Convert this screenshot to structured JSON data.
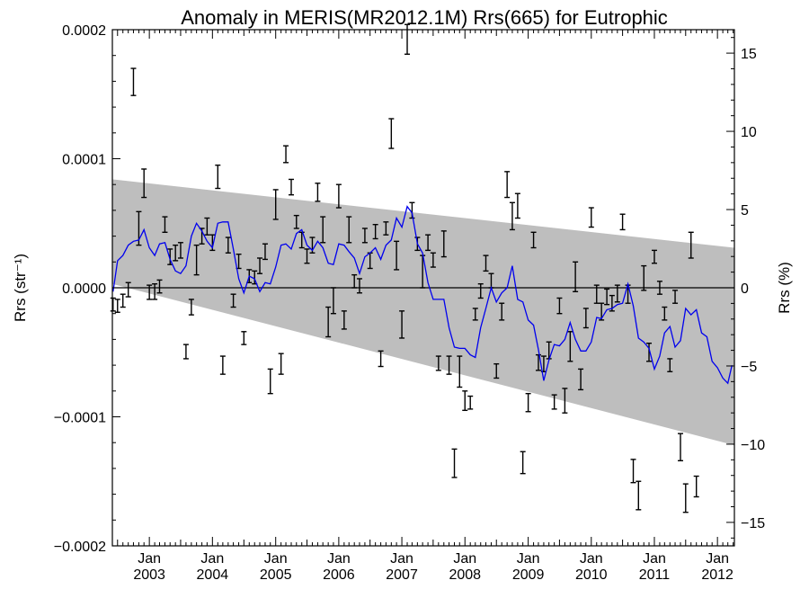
{
  "chart_data": {
    "type": "line",
    "title": "Anomaly in MERIS(MR2012.1M) Rrs(665) for Eutrophic",
    "ylabel_left": "Rrs (str⁻¹)",
    "ylabel_right": "Rrs (%)",
    "x_start": "2002-06-01",
    "x_end": "2012-04-08",
    "ylim_left": [
      -0.0002,
      0.0002
    ],
    "ylim_right": [
      -16.5,
      16.5
    ],
    "y_ticks_left": [
      {
        "value": 0.0002,
        "label": "0.0002"
      },
      {
        "value": 0.0001,
        "label": "0.0001"
      },
      {
        "value": 0.0,
        "label": "0.0000"
      },
      {
        "value": -0.0001,
        "label": "−0.0001"
      },
      {
        "value": -0.0002,
        "label": "−0.0002"
      }
    ],
    "y_ticks_right": [
      {
        "value": 15,
        "label": "15"
      },
      {
        "value": 10,
        "label": "10"
      },
      {
        "value": 5,
        "label": "5"
      },
      {
        "value": 0,
        "label": "0"
      },
      {
        "value": -5,
        "label": "−5"
      },
      {
        "value": -10,
        "label": "−10"
      },
      {
        "value": -15,
        "label": "−15"
      }
    ],
    "x_ticks": [
      {
        "date": "2003-01-01",
        "month": "Jan",
        "year": "2003"
      },
      {
        "date": "2004-01-01",
        "month": "Jan",
        "year": "2004"
      },
      {
        "date": "2005-01-01",
        "month": "Jan",
        "year": "2005"
      },
      {
        "date": "2006-01-01",
        "month": "Jan",
        "year": "2006"
      },
      {
        "date": "2007-01-01",
        "month": "Jan",
        "year": "2007"
      },
      {
        "date": "2008-01-01",
        "month": "Jan",
        "year": "2008"
      },
      {
        "date": "2009-01-01",
        "month": "Jan",
        "year": "2009"
      },
      {
        "date": "2010-01-01",
        "month": "Jan",
        "year": "2010"
      },
      {
        "date": "2011-01-01",
        "month": "Jan",
        "year": "2011"
      },
      {
        "date": "2012-01-01",
        "month": "Jan",
        "year": "2012"
      }
    ],
    "zero_line": true,
    "trend_band": {
      "start_date": "2002-06-01",
      "end_date": "2012-04-08",
      "upper": [
        8.4e-05,
        3.1e-05
      ],
      "lower": [
        3e-06,
        -0.000122
      ],
      "color": "#bebebe"
    },
    "series_line": {
      "color": "#0000ee",
      "points": [
        [
          "2002-06-05",
          -3e-06
        ],
        [
          "2002-07-01",
          2.1e-05
        ],
        [
          "2002-08-01",
          2.5e-05
        ],
        [
          "2002-09-01",
          3.3e-05
        ],
        [
          "2002-10-01",
          3.6e-05
        ],
        [
          "2002-11-01",
          3.7e-05
        ],
        [
          "2002-12-01",
          4.5e-05
        ],
        [
          "2003-01-01",
          3.1e-05
        ],
        [
          "2003-02-01",
          2.5e-05
        ],
        [
          "2003-03-01",
          3.4e-05
        ],
        [
          "2003-04-01",
          3.5e-05
        ],
        [
          "2003-05-01",
          2.2e-05
        ],
        [
          "2003-06-01",
          1.3e-05
        ],
        [
          "2003-07-01",
          1.1e-05
        ],
        [
          "2003-08-01",
          1.7e-05
        ],
        [
          "2003-09-01",
          4e-05
        ],
        [
          "2003-10-01",
          5e-05
        ],
        [
          "2003-11-01",
          4.4e-05
        ],
        [
          "2003-12-01",
          3.6e-05
        ],
        [
          "2004-01-01",
          3.1e-05
        ],
        [
          "2004-02-01",
          5e-05
        ],
        [
          "2004-03-01",
          5.1e-05
        ],
        [
          "2004-04-01",
          5.1e-05
        ],
        [
          "2004-05-01",
          3e-05
        ],
        [
          "2004-06-01",
          7e-06
        ],
        [
          "2004-07-01",
          -4e-06
        ],
        [
          "2004-08-01",
          9e-06
        ],
        [
          "2004-09-01",
          7e-06
        ],
        [
          "2004-10-01",
          -3e-06
        ],
        [
          "2004-11-01",
          4e-06
        ],
        [
          "2004-12-01",
          3e-06
        ],
        [
          "2005-01-01",
          1.6e-05
        ],
        [
          "2005-02-01",
          3.3e-05
        ],
        [
          "2005-03-01",
          3.4e-05
        ],
        [
          "2005-04-01",
          3e-05
        ],
        [
          "2005-05-01",
          4.2e-05
        ],
        [
          "2005-06-01",
          4.5e-05
        ],
        [
          "2005-07-01",
          3.3e-05
        ],
        [
          "2005-08-01",
          2.9e-05
        ],
        [
          "2005-09-01",
          3.6e-05
        ],
        [
          "2005-10-01",
          3.1e-05
        ],
        [
          "2005-11-01",
          1.9e-05
        ],
        [
          "2005-12-01",
          1.8e-05
        ],
        [
          "2006-01-01",
          3.4e-05
        ],
        [
          "2006-02-01",
          3.3e-05
        ],
        [
          "2006-03-01",
          2.8e-05
        ],
        [
          "2006-04-01",
          2.3e-05
        ],
        [
          "2006-05-01",
          1.1e-05
        ],
        [
          "2006-06-01",
          2.4e-05
        ],
        [
          "2006-07-01",
          2.7e-05
        ],
        [
          "2006-08-01",
          3.1e-05
        ],
        [
          "2006-09-01",
          2.2e-05
        ],
        [
          "2006-10-01",
          3.3e-05
        ],
        [
          "2006-11-01",
          3.7e-05
        ],
        [
          "2006-12-01",
          5.4e-05
        ],
        [
          "2007-01-01",
          4.7e-05
        ],
        [
          "2007-02-01",
          6.3e-05
        ],
        [
          "2007-03-01",
          5.8e-05
        ],
        [
          "2007-04-01",
          3.4e-05
        ],
        [
          "2007-05-01",
          2.7e-05
        ],
        [
          "2007-06-01",
          4e-06
        ],
        [
          "2007-07-01",
          -9e-06
        ],
        [
          "2007-08-01",
          -9e-06
        ],
        [
          "2007-09-01",
          -9e-06
        ],
        [
          "2007-10-01",
          -3.1e-05
        ],
        [
          "2007-11-01",
          -4.6e-05
        ],
        [
          "2007-12-01",
          -4.7e-05
        ],
        [
          "2008-01-01",
          -4.7e-05
        ],
        [
          "2008-02-01",
          -5.2e-05
        ],
        [
          "2008-03-01",
          -5.4e-05
        ],
        [
          "2008-04-01",
          -3.1e-05
        ],
        [
          "2008-05-01",
          -1.6e-05
        ],
        [
          "2008-06-01",
          0.0
        ],
        [
          "2008-07-01",
          -1.1e-05
        ],
        [
          "2008-08-01",
          -4e-06
        ],
        [
          "2008-09-01",
          0.0
        ],
        [
          "2008-10-01",
          1.7e-05
        ],
        [
          "2008-11-01",
          -9e-06
        ],
        [
          "2008-12-01",
          -1.1e-05
        ],
        [
          "2009-01-01",
          -2.5e-05
        ],
        [
          "2009-02-01",
          -2.9e-05
        ],
        [
          "2009-03-01",
          -4.8e-05
        ],
        [
          "2009-04-01",
          -7.2e-05
        ],
        [
          "2009-05-01",
          -5.6e-05
        ],
        [
          "2009-06-01",
          -4.4e-05
        ],
        [
          "2009-07-01",
          -4.5e-05
        ],
        [
          "2009-08-01",
          -4e-05
        ],
        [
          "2009-09-01",
          -2.7e-05
        ],
        [
          "2009-10-01",
          -4e-05
        ],
        [
          "2009-11-01",
          -4.9e-05
        ],
        [
          "2009-12-01",
          -4.9e-05
        ],
        [
          "2010-01-01",
          -4.2e-05
        ],
        [
          "2010-02-01",
          -2.3e-05
        ],
        [
          "2010-03-01",
          -2.4e-05
        ],
        [
          "2010-04-01",
          -1.7e-05
        ],
        [
          "2010-05-01",
          -1.6e-05
        ],
        [
          "2010-06-01",
          -1.3e-05
        ],
        [
          "2010-07-01",
          -1.2e-05
        ],
        [
          "2010-08-01",
          3e-06
        ],
        [
          "2010-09-01",
          -1.4e-05
        ],
        [
          "2010-10-01",
          -3.9e-05
        ],
        [
          "2010-11-01",
          -4.2e-05
        ],
        [
          "2010-12-01",
          -4.7e-05
        ],
        [
          "2011-01-01",
          -6.3e-05
        ],
        [
          "2011-02-01",
          -5.3e-05
        ],
        [
          "2011-03-01",
          -3.5e-05
        ],
        [
          "2011-04-01",
          -3e-05
        ],
        [
          "2011-05-01",
          -4.6e-05
        ],
        [
          "2011-06-01",
          -4.1e-05
        ],
        [
          "2011-07-01",
          -1.6e-05
        ],
        [
          "2011-08-01",
          -2.1e-05
        ],
        [
          "2011-09-01",
          -1.7e-05
        ],
        [
          "2011-10-01",
          -3.5e-05
        ],
        [
          "2011-11-01",
          -3.8e-05
        ],
        [
          "2011-12-01",
          -5.7e-05
        ],
        [
          "2012-01-01",
          -6.2e-05
        ],
        [
          "2012-02-01",
          -7e-05
        ],
        [
          "2012-03-01",
          -7.4e-05
        ],
        [
          "2012-03-25",
          -6e-05
        ]
      ]
    },
    "error_bars": [
      [
        "2002-06-05",
        -1.3e-05,
        -1.8e-05,
        -8e-06
      ],
      [
        "2002-07-01",
        -1.4e-05,
        -1.9e-05,
        -9e-06
      ],
      [
        "2002-08-01",
        -1e-05,
        -1.5e-05,
        -5e-06
      ],
      [
        "2002-09-01",
        -2e-06,
        -7e-06,
        4e-06
      ],
      [
        "2002-10-01",
        0.000159,
        0.000149,
        0.00017
      ],
      [
        "2002-11-01",
        4.6e-05,
        3.3e-05,
        5.9e-05
      ],
      [
        "2002-12-01",
        8.1e-05,
        7e-05,
        9.2e-05
      ],
      [
        "2003-01-01",
        -4e-06,
        -9e-06,
        2e-06
      ],
      [
        "2003-02-01",
        -3e-06,
        -9e-06,
        3e-06
      ],
      [
        "2003-03-01",
        1e-06,
        -4e-06,
        6e-06
      ],
      [
        "2003-04-01",
        4.9e-05,
        4.3e-05,
        5.5e-05
      ],
      [
        "2003-05-01",
        2.4e-05,
        1.8e-05,
        3e-05
      ],
      [
        "2003-06-01",
        2.7e-05,
        2.1e-05,
        3.3e-05
      ],
      [
        "2003-07-01",
        2.9e-05,
        2.3e-05,
        3.5e-05
      ],
      [
        "2003-08-01",
        -4.9e-05,
        -5.5e-05,
        -4.4e-05
      ],
      [
        "2003-09-01",
        -1.5e-05,
        -2.1e-05,
        -9e-06
      ],
      [
        "2003-10-01",
        2.2e-05,
        1e-05,
        3.3e-05
      ],
      [
        "2003-11-01",
        4e-05,
        3.4e-05,
        4.6e-05
      ],
      [
        "2003-12-01",
        4.8e-05,
        4.1e-05,
        5.4e-05
      ],
      [
        "2004-01-01",
        3.5e-05,
        2.9e-05,
        4.1e-05
      ],
      [
        "2004-02-01",
        8.6e-05,
        7.7e-05,
        9.5e-05
      ],
      [
        "2004-03-01",
        -6e-05,
        -6.7e-05,
        -5.3e-05
      ],
      [
        "2004-04-01",
        3.3e-05,
        2.7e-05,
        3.9e-05
      ],
      [
        "2004-05-01",
        -1e-05,
        -1.5e-05,
        -5e-06
      ],
      [
        "2004-06-01",
        2.1e-05,
        1.5e-05,
        2.6e-05
      ],
      [
        "2004-07-01",
        -3.9e-05,
        -4.4e-05,
        -3.4e-05
      ],
      [
        "2004-08-01",
        9e-06,
        4e-06,
        1.4e-05
      ],
      [
        "2004-09-01",
        8e-06,
        3e-06,
        1.3e-05
      ],
      [
        "2004-10-01",
        1.7e-05,
        1.1e-05,
        2.3e-05
      ],
      [
        "2004-11-01",
        2.8e-05,
        2.2e-05,
        3.4e-05
      ],
      [
        "2004-12-01",
        -7.2e-05,
        -8.2e-05,
        -6.3e-05
      ],
      [
        "2005-01-01",
        6.5e-05,
        5.3e-05,
        7.6e-05
      ],
      [
        "2005-02-01",
        -5.9e-05,
        -6.7e-05,
        -5.1e-05
      ],
      [
        "2005-03-01",
        0.000103,
        9.7e-05,
        0.00011
      ],
      [
        "2005-04-01",
        7.8e-05,
        7.2e-05,
        8.4e-05
      ],
      [
        "2005-05-01",
        5.1e-05,
        4.6e-05,
        5.6e-05
      ],
      [
        "2005-06-01",
        3.7e-05,
        3.1e-05,
        4.3e-05
      ],
      [
        "2005-07-01",
        2.4e-05,
        1.9e-05,
        3e-05
      ],
      [
        "2005-08-01",
        3.3e-05,
        2.7e-05,
        3.9e-05
      ],
      [
        "2005-09-01",
        7.4e-05,
        6.7e-05,
        8.1e-05
      ],
      [
        "2005-10-01",
        4.5e-05,
        3.5e-05,
        5.5e-05
      ],
      [
        "2005-11-01",
        -2.6e-05,
        -3.8e-05,
        -1.5e-05
      ],
      [
        "2005-12-01",
        -1e-05,
        -2e-05,
        0.0
      ],
      [
        "2006-01-01",
        7.1e-05,
        6.2e-05,
        8e-05
      ],
      [
        "2006-02-01",
        -2.5e-05,
        -3.2e-05,
        -1.8e-05
      ],
      [
        "2006-03-01",
        4.5e-05,
        3.5e-05,
        5.5e-05
      ],
      [
        "2006-04-01",
        5e-06,
        0.0,
        1e-05
      ],
      [
        "2006-05-01",
        1e-06,
        -4e-06,
        7e-06
      ],
      [
        "2006-06-01",
        4e-05,
        3.5e-05,
        4.6e-05
      ],
      [
        "2006-07-01",
        2.1e-05,
        1.5e-05,
        2.7e-05
      ],
      [
        "2006-08-01",
        4.3e-05,
        3.8e-05,
        4.9e-05
      ],
      [
        "2006-09-01",
        -5.5e-05,
        -6.1e-05,
        -4.9e-05
      ],
      [
        "2006-10-01",
        4.6e-05,
        4.1e-05,
        5.1e-05
      ],
      [
        "2006-11-01",
        0.00012,
        0.000108,
        0.000131
      ],
      [
        "2006-12-01",
        2.5e-05,
        1.4e-05,
        3.6e-05
      ],
      [
        "2007-01-01",
        -2.8e-05,
        -3.9e-05,
        -1.8e-05
      ],
      [
        "2007-02-01",
        0.000192,
        0.000181,
        0.000204
      ],
      [
        "2007-03-01",
        6e-05,
        5.4e-05,
        6.6e-05
      ],
      [
        "2007-04-01",
        3.4e-05,
        2.9e-05,
        3.9e-05
      ],
      [
        "2007-05-01",
        1.3e-05,
        0.0,
        2.5e-05
      ],
      [
        "2007-06-01",
        3.5e-05,
        2.9e-05,
        4.1e-05
      ],
      [
        "2007-07-01",
        2.1e-05,
        1.6e-05,
        2.7e-05
      ],
      [
        "2007-08-01",
        -5.9e-05,
        -6.4e-05,
        -5.3e-05
      ],
      [
        "2007-09-01",
        3.4e-05,
        2.4e-05,
        4.4e-05
      ],
      [
        "2007-10-01",
        -6e-05,
        -6.7e-05,
        -5.3e-05
      ],
      [
        "2007-11-01",
        -0.000136,
        -0.000147,
        -0.000125
      ],
      [
        "2007-12-01",
        -6.5e-05,
        -7.7e-05,
        -5.3e-05
      ],
      [
        "2008-01-01",
        -8.8e-05,
        -9.5e-05,
        -8e-05
      ],
      [
        "2008-02-01",
        -8.9e-05,
        -9.4e-05,
        -8.4e-05
      ],
      [
        "2008-03-01",
        -2e-05,
        -2.5e-05,
        -1.6e-05
      ],
      [
        "2008-04-01",
        -3e-06,
        -8e-06,
        3e-06
      ],
      [
        "2008-05-01",
        1.9e-05,
        1.3e-05,
        2.5e-05
      ],
      [
        "2008-06-01",
        5e-06,
        0.0,
        1.1e-05
      ],
      [
        "2008-07-01",
        -6.4e-05,
        -7e-05,
        -5.9e-05
      ],
      [
        "2008-08-01",
        -1.8e-05,
        -2.5e-05,
        -1.2e-05
      ],
      [
        "2008-09-01",
        8e-05,
        7e-05,
        9e-05
      ],
      [
        "2008-10-01",
        5.5e-05,
        4.5e-05,
        6.6e-05
      ],
      [
        "2008-11-01",
        6.3e-05,
        5.4e-05,
        7.3e-05
      ],
      [
        "2008-12-01",
        -0.000135,
        -0.000144,
        -0.000127
      ],
      [
        "2009-01-01",
        -8.9e-05,
        -9.6e-05,
        -8.2e-05
      ],
      [
        "2009-02-01",
        3.7e-05,
        3.1e-05,
        4.3e-05
      ],
      [
        "2009-03-01",
        -5.8e-05,
        -6.4e-05,
        -5.2e-05
      ],
      [
        "2009-04-01",
        -5.9e-05,
        -6.5e-05,
        -5.3e-05
      ],
      [
        "2009-05-01",
        -4.8e-05,
        -5.5e-05,
        -4.2e-05
      ],
      [
        "2009-06-01",
        -8.8e-05,
        -9.4e-05,
        -8.3e-05
      ],
      [
        "2009-07-01",
        -1.4e-05,
        -2e-05,
        -8e-06
      ],
      [
        "2009-08-01",
        -8.8e-05,
        -9.7e-05,
        -7.8e-05
      ],
      [
        "2009-09-01",
        -4.5e-05,
        -5.7e-05,
        -3.4e-05
      ],
      [
        "2009-10-01",
        8e-06,
        -3e-06,
        2e-05
      ],
      [
        "2009-11-01",
        -7.1e-05,
        -7.9e-05,
        -6.3e-05
      ],
      [
        "2009-12-01",
        -2.3e-05,
        -3.1e-05,
        -1.6e-05
      ],
      [
        "2010-01-01",
        5.4e-05,
        4.7e-05,
        6.2e-05
      ],
      [
        "2010-02-01",
        -5e-06,
        -1.2e-05,
        2e-06
      ],
      [
        "2010-03-01",
        -1.8e-05,
        -2.5e-05,
        -1.2e-05
      ],
      [
        "2010-04-01",
        -7e-06,
        -1.3e-05,
        -1e-06
      ],
      [
        "2010-05-01",
        -1.2e-05,
        -1.8e-05,
        -6e-06
      ],
      [
        "2010-06-01",
        -5e-06,
        -1.1e-05,
        2e-06
      ],
      [
        "2010-07-01",
        5.1e-05,
        4.5e-05,
        5.7e-05
      ],
      [
        "2010-08-01",
        -5e-06,
        -1.2e-05,
        2e-06
      ],
      [
        "2010-09-01",
        -0.000142,
        -0.000151,
        -0.000133
      ],
      [
        "2010-10-01",
        -0.000161,
        -0.000172,
        -0.00015
      ],
      [
        "2010-11-01",
        7e-06,
        -2e-06,
        1.7e-05
      ],
      [
        "2010-12-01",
        -5e-05,
        -5.7e-05,
        -4.3e-05
      ],
      [
        "2011-01-01",
        2.4e-05,
        1.9e-05,
        2.9e-05
      ],
      [
        "2011-02-01",
        0.0,
        -5e-06,
        5e-06
      ],
      [
        "2011-03-01",
        -2e-05,
        -2.5e-05,
        -1.5e-05
      ],
      [
        "2011-04-01",
        -6e-05,
        -6.5e-05,
        -5.5e-05
      ],
      [
        "2011-05-01",
        -7e-06,
        -1.2e-05,
        -2e-06
      ],
      [
        "2011-06-01",
        -0.000123,
        -0.000134,
        -0.000113
      ],
      [
        "2011-07-01",
        -0.000163,
        -0.000174,
        -0.000152
      ],
      [
        "2011-08-01",
        3.3e-05,
        2.3e-05,
        4.3e-05
      ],
      [
        "2011-09-01",
        -0.000154,
        -0.000162,
        -0.000146
      ]
    ]
  }
}
